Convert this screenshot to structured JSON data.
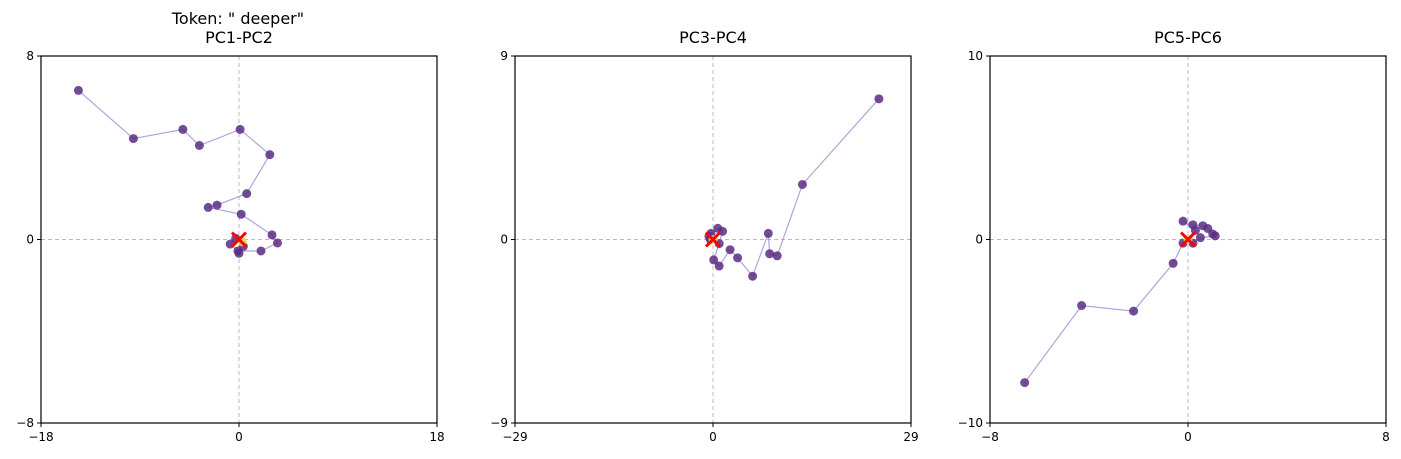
{
  "figure": {
    "suptitle": "Token: \" deeper\""
  },
  "chart_data": [
    {
      "type": "scatter",
      "title": "PC1-PC2",
      "xlim": [
        -18,
        18
      ],
      "ylim": [
        -8,
        8
      ],
      "xticks": [
        "−18",
        "0",
        "18"
      ],
      "yticks": [
        "−8",
        "0",
        "8"
      ],
      "grid": false,
      "crosshair_at_zero": true,
      "line_color": "#9b8fd3",
      "point_color": "#5b2d82",
      "final_point_color": "#e8d43a",
      "origin_marker_color": "#ff0000",
      "points": [
        {
          "x": -14.6,
          "y": 6.5
        },
        {
          "x": -9.6,
          "y": 4.4
        },
        {
          "x": -5.1,
          "y": 4.8
        },
        {
          "x": -3.6,
          "y": 4.1
        },
        {
          "x": 0.1,
          "y": 4.8
        },
        {
          "x": 2.8,
          "y": 3.7
        },
        {
          "x": 0.7,
          "y": 2.0
        },
        {
          "x": -2.0,
          "y": 1.5
        },
        {
          "x": -2.8,
          "y": 1.4
        },
        {
          "x": 0.2,
          "y": 1.1
        },
        {
          "x": 3.0,
          "y": 0.2
        },
        {
          "x": 3.5,
          "y": -0.15
        },
        {
          "x": 2.0,
          "y": -0.5
        },
        {
          "x": -0.1,
          "y": -0.5
        },
        {
          "x": -0.8,
          "y": -0.2
        },
        {
          "x": -0.3,
          "y": 0.05
        },
        {
          "x": 0.4,
          "y": -0.3
        },
        {
          "x": 0.0,
          "y": -0.6
        },
        {
          "x": 0.3,
          "y": -0.1
        }
      ]
    },
    {
      "type": "scatter",
      "title": "PC3-PC4",
      "xlim": [
        -29,
        29
      ],
      "ylim": [
        -9,
        9
      ],
      "xticks": [
        "−29",
        "0",
        "29"
      ],
      "yticks": [
        "−9",
        "0",
        "9"
      ],
      "grid": false,
      "crosshair_at_zero": true,
      "line_color": "#9b8fd3",
      "point_color": "#5b2d82",
      "final_point_color": "#e8d43a",
      "origin_marker_color": "#ff0000",
      "points": [
        {
          "x": 24.3,
          "y": 6.9
        },
        {
          "x": 13.1,
          "y": 2.7
        },
        {
          "x": 9.4,
          "y": -0.8
        },
        {
          "x": 8.3,
          "y": -0.7
        },
        {
          "x": 8.1,
          "y": 0.3
        },
        {
          "x": 5.8,
          "y": -1.8
        },
        {
          "x": 3.6,
          "y": -0.9
        },
        {
          "x": 2.5,
          "y": -0.5
        },
        {
          "x": 0.9,
          "y": -1.3
        },
        {
          "x": 0.1,
          "y": -1.0
        },
        {
          "x": 0.9,
          "y": -0.2
        },
        {
          "x": 1.4,
          "y": 0.4
        },
        {
          "x": 0.7,
          "y": 0.55
        },
        {
          "x": -0.3,
          "y": 0.3
        },
        {
          "x": -0.6,
          "y": 0.15
        },
        {
          "x": -0.4,
          "y": 0.0
        },
        {
          "x": 0.0,
          "y": 0.0
        }
      ]
    },
    {
      "type": "scatter",
      "title": "PC5-PC6",
      "xlim": [
        -8,
        8
      ],
      "ylim": [
        -10,
        10
      ],
      "xticks": [
        "−8",
        "0",
        "8"
      ],
      "yticks": [
        "−10",
        "0",
        "10"
      ],
      "grid": false,
      "crosshair_at_zero": true,
      "line_color": "#9b8fd3",
      "point_color": "#5b2d82",
      "final_point_color": "#e8d43a",
      "origin_marker_color": "#ff0000",
      "points": [
        {
          "x": -6.6,
          "y": -7.8
        },
        {
          "x": -4.3,
          "y": -3.6
        },
        {
          "x": -2.2,
          "y": -3.9
        },
        {
          "x": -0.6,
          "y": -1.3
        },
        {
          "x": -0.2,
          "y": -0.2
        },
        {
          "x": 0.3,
          "y": 0.5
        },
        {
          "x": -0.2,
          "y": 1.0
        },
        {
          "x": 0.2,
          "y": 0.8
        },
        {
          "x": 0.6,
          "y": 0.75
        },
        {
          "x": 0.8,
          "y": 0.6
        },
        {
          "x": 1.0,
          "y": 0.3
        },
        {
          "x": 1.1,
          "y": 0.2
        },
        {
          "x": 0.5,
          "y": 0.1
        },
        {
          "x": 0.2,
          "y": -0.2
        },
        {
          "x": 0.0,
          "y": 0.0
        }
      ]
    }
  ]
}
